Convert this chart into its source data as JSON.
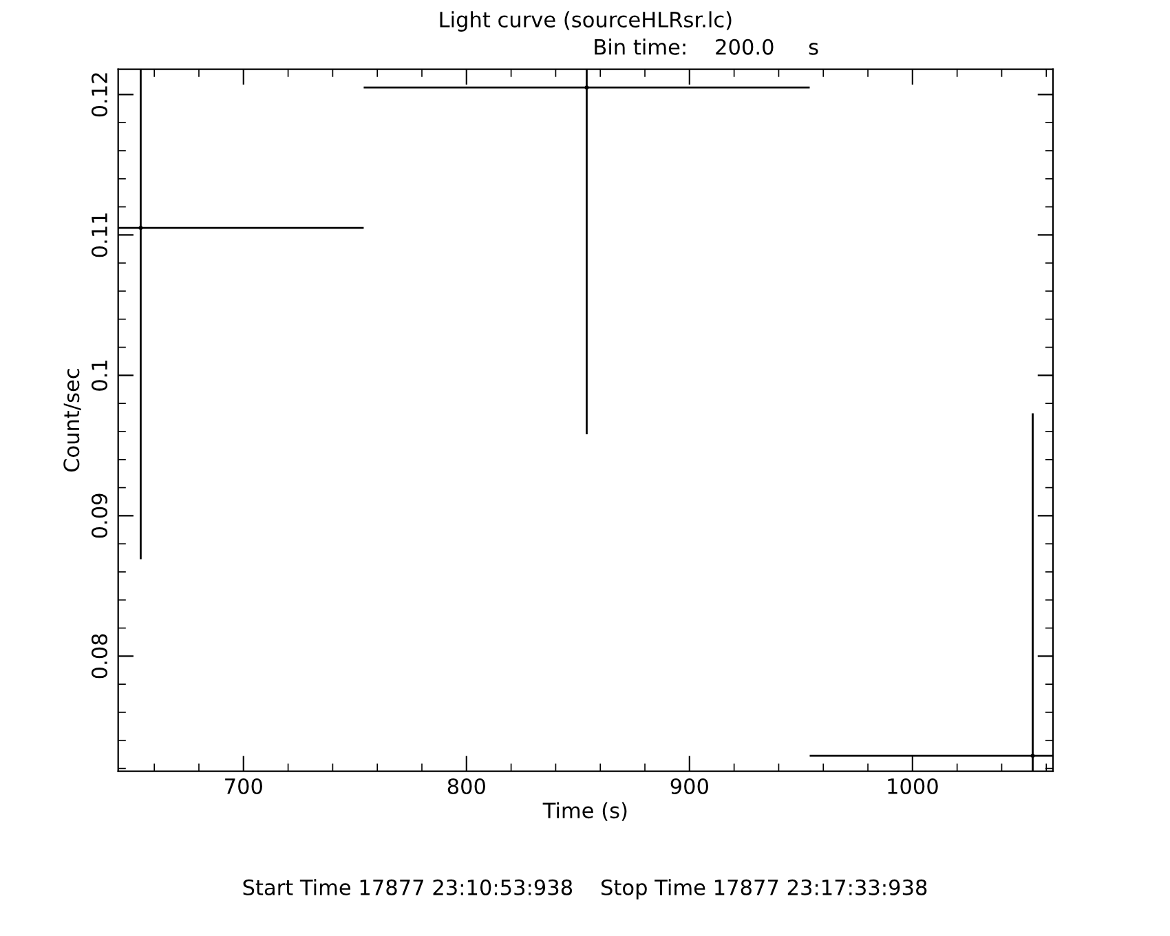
{
  "chart_data": {
    "type": "scatter",
    "title": "Light curve (sourceHLRsr.lc)",
    "xlabel": "Time (s)",
    "ylabel": "Count/sec",
    "annotations": [
      "Bin time:    200.0     s",
      "Start Time 17877 23:10:53:938    Stop Time 17877 23:17:33:938"
    ],
    "x": [
      653.9,
      853.9,
      1053.9
    ],
    "series": [
      {
        "color": "#000000",
        "values": [
          0.1105,
          0.1205,
          0.0729
        ],
        "errors": [
          [
            0.0869,
            0.1218
          ],
          [
            0.0958,
            0.1218
          ],
          [
            0.0718,
            0.0973
          ]
        ],
        "xerrors": [
          [
            643.8,
            753.9
          ],
          100,
          [
            953.9,
            1063
          ]
        ]
      }
    ],
    "marker": "none",
    "grid": false,
    "legend": false,
    "xlim": [
      643.8,
      1063
    ],
    "ylim": [
      0.0718,
      0.1218
    ],
    "xticks": [
      700,
      800,
      900,
      1000
    ],
    "yticks": [
      0.08,
      0.09,
      0.1,
      0.11,
      0.12
    ]
  }
}
